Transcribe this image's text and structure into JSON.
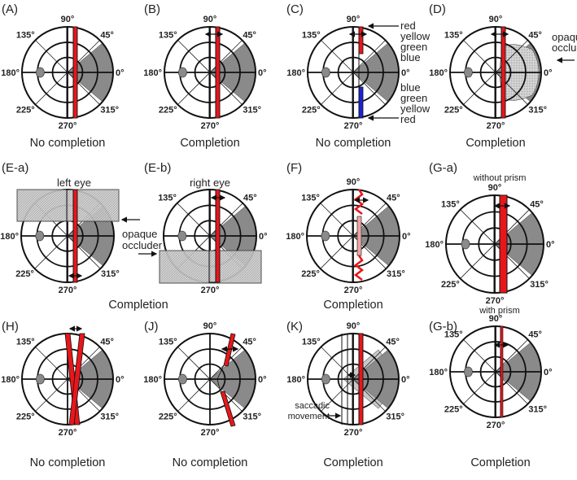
{
  "figure": {
    "angle_labels": {
      "a90": "90°",
      "a45": "45°",
      "a0": "0°",
      "a315": "315°",
      "a270": "270°",
      "a225": "225°",
      "a180": "180°",
      "a135": "135°"
    },
    "panels": [
      {
        "label": "(A)",
        "caption": "No completion"
      },
      {
        "label": "(B)",
        "caption": "Completion"
      },
      {
        "label": "(C)",
        "caption": "No completion"
      },
      {
        "label": "(D)",
        "caption": "Completion"
      },
      {
        "label": "(E-a)",
        "caption": "",
        "title": "left eye"
      },
      {
        "label": "(E-b)",
        "caption": "",
        "title": "right eye"
      },
      {
        "label": "(F)",
        "caption": "Completion"
      },
      {
        "label": "(G-a)",
        "caption": "",
        "title": "without prism"
      },
      {
        "label": "(H)",
        "caption": "No completion"
      },
      {
        "label": "(J)",
        "caption": "No completion"
      },
      {
        "label": "(K)",
        "caption": "Completion"
      },
      {
        "label": "(G-b)",
        "caption": "Completion",
        "title": "with prism"
      }
    ],
    "e_caption": "Completion",
    "annotations": {
      "c_top": [
        "red",
        "yellow",
        "green",
        "blue"
      ],
      "c_bottom": [
        "blue",
        "green",
        "yellow",
        "red"
      ],
      "occluder_d": [
        "opaque",
        "occluder"
      ],
      "occluder_e": [
        "opaque",
        "occluder"
      ],
      "saccadic": [
        "saccadic",
        "movement"
      ]
    },
    "colors": {
      "red": "#e8161b",
      "blue": "#1a22d6",
      "pink": "#f2a3a3",
      "wedge": "#8a8a8a",
      "hatch": "#c4c4c4"
    }
  }
}
